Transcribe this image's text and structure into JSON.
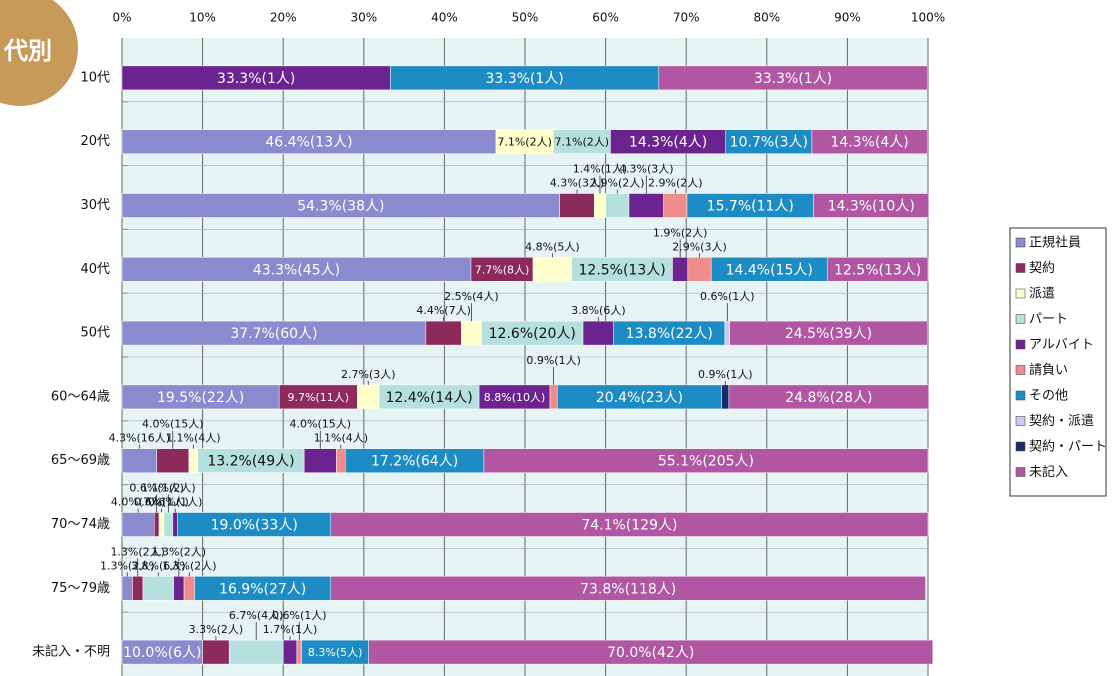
{
  "chart_data": {
    "type": "stacked-bar-horizontal",
    "badge": "代別",
    "categories": [
      "10代",
      "20代",
      "30代",
      "40代",
      "50代",
      "60〜64歳",
      "65〜69歳",
      "70〜74歳",
      "75〜79歳",
      "未記入・不明"
    ],
    "xlim": [
      0,
      100
    ],
    "xticks": [
      {
        "value": 0,
        "label": "0%"
      },
      {
        "value": 10,
        "label": "10%"
      },
      {
        "value": 20,
        "label": "20%"
      },
      {
        "value": 30,
        "label": "30%"
      },
      {
        "value": 40,
        "label": "40%"
      },
      {
        "value": 50,
        "label": "50%"
      },
      {
        "value": 60,
        "label": "60%"
      },
      {
        "value": 70,
        "label": "70%"
      },
      {
        "value": 80,
        "label": "80%"
      },
      {
        "value": 90,
        "label": "90%"
      },
      {
        "value": 100,
        "label": "100%"
      }
    ],
    "grid": true,
    "legend": "right",
    "series": [
      {
        "name": "正規社員",
        "color": "#8a8ace",
        "values": [
          null,
          46.4,
          54.3,
          43.3,
          37.7,
          19.5,
          4.3,
          4.0,
          1.3,
          10.0
        ],
        "value_labels": [
          null,
          "46.4%(13人)",
          "54.3%(38人)",
          "43.3%(45人)",
          "37.7%(60人)",
          "19.5%(22人)",
          "4.3%(16人)",
          "4.0%(7人)",
          "1.3%(2人)",
          "10.0%(6人)"
        ]
      },
      {
        "name": "契約",
        "color": "#8c2a5c",
        "values": [
          null,
          null,
          4.3,
          7.7,
          4.4,
          9.7,
          4.0,
          0.6,
          1.3,
          3.3
        ],
        "value_labels": [
          null,
          null,
          "4.3%(3人)",
          "7.7%(8人)",
          "4.4%(7人)",
          "9.7%(11人)",
          "4.0%(15人)",
          "0.6%(1人)",
          "1.3%(2人)",
          "3.3%(2人)"
        ]
      },
      {
        "name": "派遣",
        "color": "#ffffcc",
        "values": [
          null,
          7.1,
          1.4,
          4.8,
          2.5,
          2.7,
          1.1,
          0.6,
          null,
          null
        ],
        "value_labels": [
          null,
          "7.1%(2人)",
          "1.4%(1人)",
          "4.8%(5人)",
          "2.5%(4人)",
          "2.7%(3人)",
          "1.1%(4人)",
          "0.6%(1人)",
          null,
          null
        ]
      },
      {
        "name": "パート",
        "color": "#b6e0de",
        "values": [
          null,
          7.1,
          2.9,
          12.5,
          12.6,
          12.4,
          13.2,
          1.1,
          3.8,
          6.7
        ],
        "value_labels": [
          null,
          "7.1%(2人)",
          "2.9%(2人)",
          "12.5%(13人)",
          "12.6%(20人)",
          "12.4%(14人)",
          "13.2%(49人)",
          "1.1%(2人)",
          "3.8%(6人)",
          "6.7%(4人)"
        ]
      },
      {
        "name": "アルバイト",
        "color": "#6b2390",
        "values": [
          33.3,
          14.3,
          4.3,
          1.9,
          3.8,
          8.8,
          4.0,
          0.6,
          1.3,
          1.7
        ],
        "value_labels": [
          "33.3%(1人)",
          "14.3%(4人)",
          "4.3%(3人)",
          "1.9%(2人)",
          "3.8%(6人)",
          "8.8%(10人)",
          "4.0%(15人)",
          "0.6%(1人)",
          "1.3%(2人)",
          "1.7%(1人)"
        ]
      },
      {
        "name": "請負い",
        "color": "#f08c8c",
        "values": [
          null,
          null,
          2.9,
          2.9,
          null,
          0.9,
          1.1,
          null,
          1.3,
          0.6
        ],
        "value_labels": [
          null,
          null,
          "2.9%(2人)",
          "2.9%(3人)",
          null,
          "0.9%(1人)",
          "1.1%(4人)",
          null,
          "1.3%(2人)",
          "0.6%(1人)"
        ]
      },
      {
        "name": "その他",
        "color": "#1d8cc4",
        "values": [
          33.3,
          10.7,
          15.7,
          14.4,
          13.8,
          20.4,
          17.2,
          19.0,
          16.9,
          8.3
        ],
        "value_labels": [
          "33.3%(1人)",
          "10.7%(3人)",
          "15.7%(11人)",
          "14.4%(15人)",
          "13.8%(22人)",
          "20.4%(23人)",
          "17.2%(64人)",
          "19.0%(33人)",
          "16.9%(27人)",
          "8.3%(5人)"
        ]
      },
      {
        "name": "契約・派遣",
        "color": "#c9c9f2",
        "values": [
          null,
          null,
          null,
          null,
          0.6,
          null,
          null,
          null,
          null,
          null
        ],
        "value_labels": [
          null,
          null,
          null,
          null,
          "0.6%(1人)",
          null,
          null,
          null,
          null,
          null
        ]
      },
      {
        "name": "契約・パート",
        "color": "#1b2a6c",
        "values": [
          null,
          null,
          null,
          null,
          null,
          0.9,
          null,
          null,
          null,
          null
        ],
        "value_labels": [
          null,
          null,
          null,
          null,
          null,
          "0.9%(1人)",
          null,
          null,
          null,
          null
        ]
      },
      {
        "name": "未記入",
        "color": "#b056a2",
        "values": [
          33.3,
          14.3,
          14.3,
          12.5,
          24.5,
          24.8,
          55.1,
          74.1,
          73.8,
          70.0
        ],
        "value_labels": [
          "33.3%(1人)",
          "14.3%(4人)",
          "14.3%(10人)",
          "12.5%(13人)",
          "24.5%(39人)",
          "24.8%(28人)",
          "55.1%(205人)",
          "74.1%(129人)",
          "73.8%(118人)",
          "70.0%(42人)"
        ]
      }
    ]
  }
}
